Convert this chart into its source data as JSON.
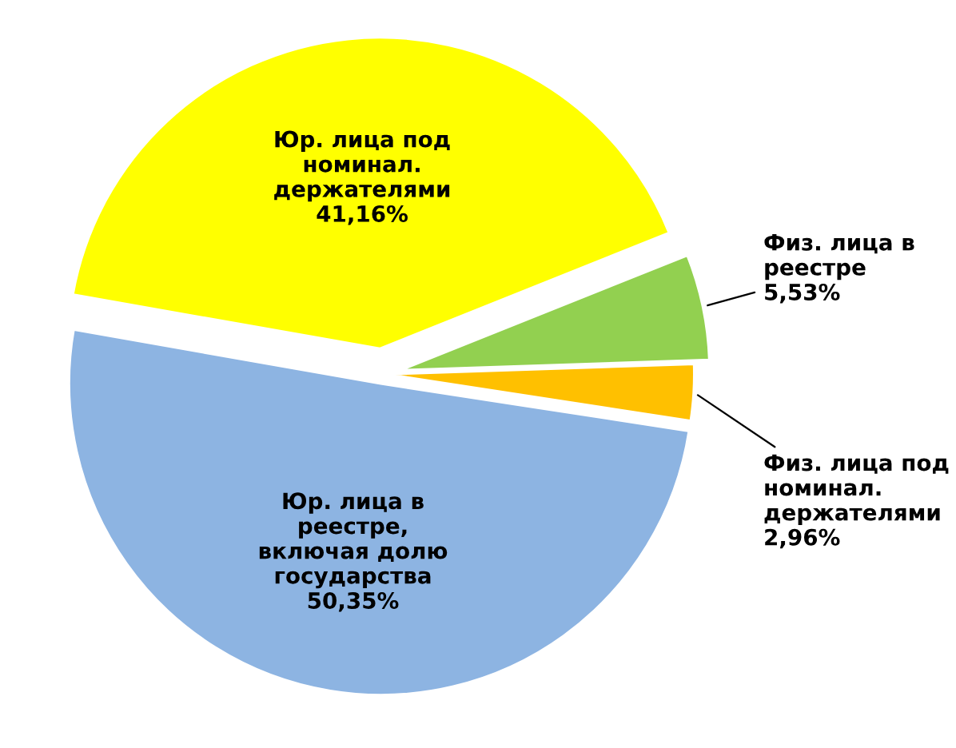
{
  "chart_data": {
    "type": "pie",
    "categories": [
      "Юр. лица под номинал. держателями",
      "Физ. лица в реестре",
      "Физ. лица под номинал. держателями",
      "Юр. лица в реестре, включая долю государства"
    ],
    "values": [
      41.16,
      5.53,
      2.96,
      50.35
    ],
    "value_labels": [
      "41,16%",
      "5,53%",
      "2,96%",
      "50,35%"
    ],
    "colors": [
      "#ffff00",
      "#92d050",
      "#ffc000",
      "#8db4e2"
    ],
    "legend": false
  }
}
